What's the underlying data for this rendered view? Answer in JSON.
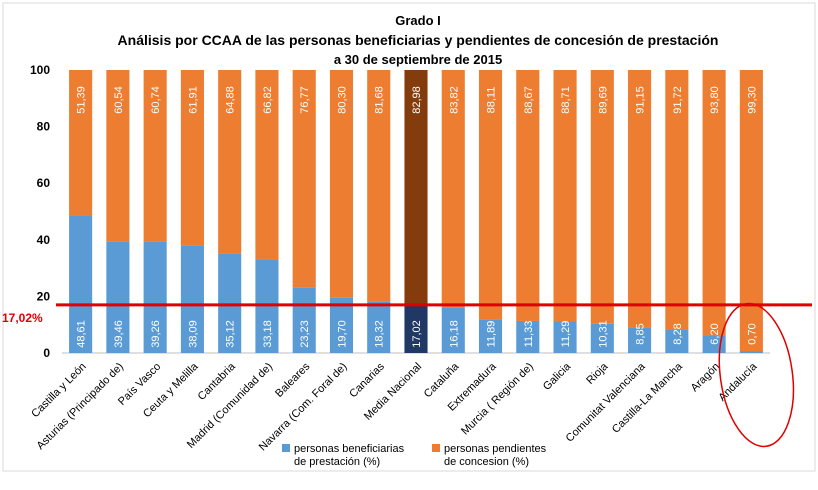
{
  "chart_data": {
    "type": "bar",
    "stacked": true,
    "orientation": "vertical",
    "title_lines": [
      "Grado I",
      "Análisis por CCAA de las personas beneficiarias y pendientes de concesión de prestación",
      "a 30 de septiembre de 2015"
    ],
    "xlabel": "",
    "ylabel": "",
    "ylim": [
      0,
      100
    ],
    "yticks": [
      0,
      20,
      40,
      60,
      80,
      100
    ],
    "grid": false,
    "legend_position": "bottom",
    "categories": [
      "Castilla y León",
      "Asturias (Principado de)",
      "País Vasco",
      "Ceuta y Melilla",
      "Cantabria",
      "Madrid (Comunidad de)",
      "Baleares",
      "Navarra (Com. Foral de)",
      "Canarias",
      "Media Nacional",
      "Cataluña",
      "Extremadura",
      "Murcia ( Región de)",
      "Galicia",
      "Rioja",
      "Comunitat Valenciana",
      "Castilla-La Mancha",
      "Aragón",
      "Andalucía"
    ],
    "series": [
      {
        "name": "personas beneficiarias de prestación (%)",
        "legend_lines": [
          "personas beneficiarias",
          "de prestación (%)"
        ],
        "color": "#5b9bd5",
        "highlight_color": "#1f3864",
        "values": [
          48.61,
          39.46,
          39.26,
          38.09,
          35.12,
          33.18,
          23.23,
          19.7,
          18.32,
          17.02,
          16.18,
          11.89,
          11.33,
          11.29,
          10.31,
          8.85,
          8.28,
          6.2,
          0.7
        ],
        "labels": [
          "48,61",
          "39,46",
          "39,26",
          "38,09",
          "35,12",
          "33,18",
          "23,23",
          "19,70",
          "18,32",
          "17,02",
          "16,18",
          "11,89",
          "11,33",
          "11,29",
          "10,31",
          "8,85",
          "8,28",
          "6,20",
          "0,70"
        ]
      },
      {
        "name": "personas pendientes de concesion (%)",
        "legend_lines": [
          "personas pendientes",
          "de concesion (%)"
        ],
        "color": "#ed7d31",
        "highlight_color": "#843c0c",
        "values": [
          51.39,
          60.54,
          60.74,
          61.91,
          64.88,
          66.82,
          76.77,
          80.3,
          81.68,
          82.98,
          83.82,
          88.11,
          88.67,
          88.71,
          89.69,
          91.15,
          91.72,
          93.8,
          99.3
        ],
        "labels": [
          "51,39",
          "60,54",
          "60,74",
          "61,91",
          "64,88",
          "66,82",
          "76,77",
          "80,30",
          "81,68",
          "82,98",
          "83,82",
          "88,11",
          "88,67",
          "88,71",
          "89,69",
          "91,15",
          "91,72",
          "93,80",
          "99,30"
        ]
      }
    ],
    "highlight_category": "Media Nacional",
    "reference_line": {
      "value": 17.02,
      "label": "17,02%",
      "color": "#e00000"
    },
    "circled_category": "Andalucía",
    "annotation_color": "#e00000"
  }
}
